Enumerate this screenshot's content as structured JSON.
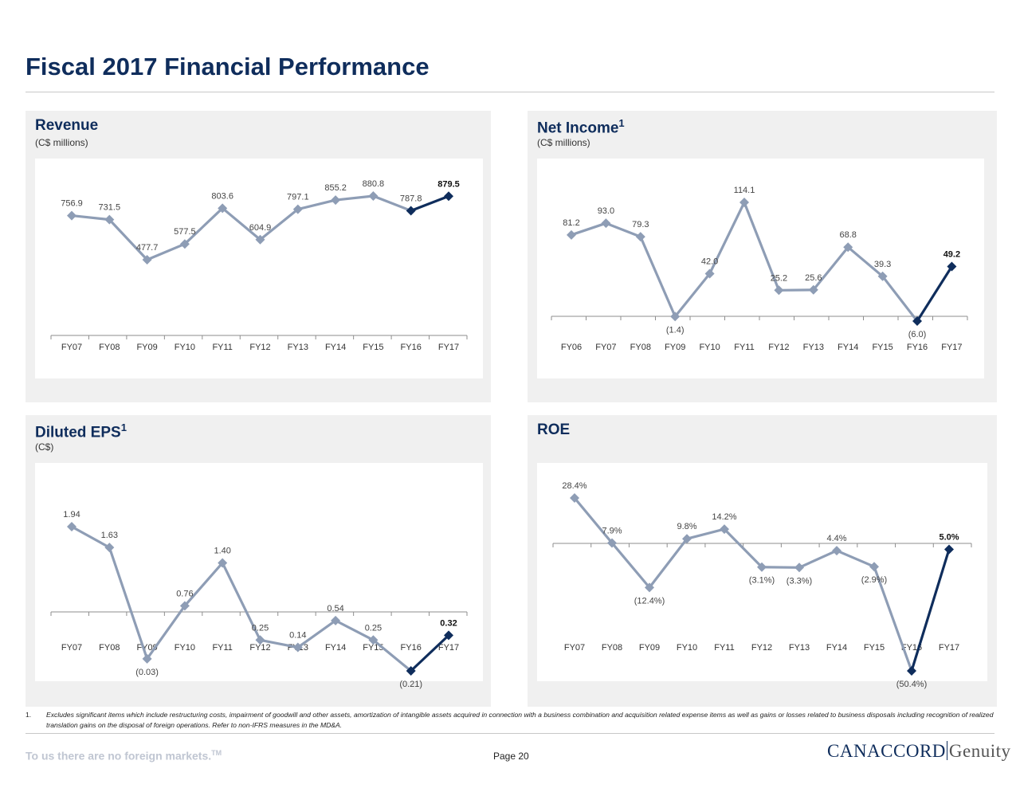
{
  "page": {
    "title": "Fiscal 2017 Financial Performance",
    "footnote_number": "1.",
    "footnote_text": "Excludes significant items which include restructuring costs, impairment of goodwill and other assets, amortization of intangible assets acquired in connection with  a business combination and acquisition related expense items as well as gains or losses related to business disposals including recognition of realized translation gains on the disposal of foreign operations. Refer to  non-IFRS measures in the MD&A.",
    "tagline": "To us there are no foreign markets.",
    "tagline_mark": "TM",
    "page_label": "Page 20",
    "logo_main": "CANACCORD",
    "logo_secondary": "Genuity"
  },
  "colors": {
    "navy": "#0f2d5c",
    "line_gray": "#8e9db5",
    "axis": "#8e8e8e"
  },
  "panels": {
    "revenue": {
      "title": "Revenue",
      "sup": "",
      "subtitle": "(C$ millions)"
    },
    "net_income": {
      "title": "Net Income",
      "sup": "1",
      "subtitle": "(C$ millions)"
    },
    "eps": {
      "title": "Diluted EPS",
      "sup": "1",
      "subtitle": "(C$)"
    },
    "roe": {
      "title": "ROE",
      "sup": "",
      "subtitle": ""
    }
  },
  "chart_data": [
    {
      "id": "revenue",
      "type": "line",
      "title": "Revenue",
      "ylabel": "C$ millions",
      "categories": [
        "FY07",
        "FY08",
        "FY09",
        "FY10",
        "FY11",
        "FY12",
        "FY13",
        "FY14",
        "FY15",
        "FY16",
        "FY17"
      ],
      "values": [
        756.9,
        731.5,
        477.7,
        577.5,
        803.6,
        604.9,
        797.1,
        855.2,
        880.8,
        787.8,
        879.5
      ],
      "labels": [
        "756.9",
        "731.5",
        "477.7",
        "577.5",
        "803.6",
        "604.9",
        "797.1",
        "855.2",
        "880.8",
        "787.8",
        "879.5"
      ],
      "ylim": [
        0,
        1000
      ],
      "highlight_from": 9
    },
    {
      "id": "net_income",
      "type": "line",
      "title": "Net Income",
      "ylabel": "C$ millions",
      "categories": [
        "FY06",
        "FY07",
        "FY08",
        "FY09",
        "FY10",
        "FY11",
        "FY12",
        "FY13",
        "FY14",
        "FY15",
        "FY16",
        "FY17"
      ],
      "values": [
        81.2,
        93.0,
        79.3,
        -1.4,
        42.0,
        114.1,
        25.2,
        25.6,
        68.8,
        39.3,
        -6.0,
        49.2
      ],
      "labels": [
        "81.2",
        "93.0",
        "79.3",
        "(1.4)",
        "42.0",
        "114.1",
        "25.2",
        "25.6",
        "68.8",
        "39.3",
        "(6.0)",
        "49.2"
      ],
      "ylim": [
        -6,
        125
      ],
      "highlight_from": 10
    },
    {
      "id": "eps",
      "type": "line",
      "title": "Diluted EPS",
      "ylabel": "C$",
      "categories": [
        "FY07",
        "FY08",
        "FY09",
        "FY10",
        "FY11",
        "FY12",
        "FY13",
        "FY14",
        "FY15",
        "FY16",
        "FY17"
      ],
      "values": [
        1.94,
        1.63,
        -0.03,
        0.76,
        1.4,
        0.25,
        0.14,
        0.54,
        0.25,
        -0.21,
        0.32
      ],
      "labels": [
        "1.94",
        "1.63",
        "(0.03)",
        "0.76",
        "1.40",
        "0.25",
        "0.14",
        "0.54",
        "0.25",
        "(0.21)",
        "0.32"
      ],
      "ylim": [
        -0.25,
        2.1
      ],
      "highlight_from": 9
    },
    {
      "id": "roe",
      "type": "line",
      "title": "ROE",
      "ylabel": "%",
      "categories": [
        "FY07",
        "FY08",
        "FY09",
        "FY10",
        "FY11",
        "FY12",
        "FY13",
        "FY14",
        "FY15",
        "FY16",
        "FY17"
      ],
      "values": [
        28.4,
        7.9,
        -12.4,
        9.8,
        14.2,
        -3.1,
        -3.3,
        4.4,
        -2.9,
        -50.4,
        5.0
      ],
      "labels": [
        "28.4%",
        "7.9%",
        "(12.4%)",
        "9.8%",
        "14.2%",
        "(3.1%)",
        "(3.3%)",
        "4.4%",
        "(2.9%)",
        "(50.4%)",
        "5.0%"
      ],
      "ylim": [
        -55,
        35
      ],
      "highlight_from": 9
    }
  ]
}
